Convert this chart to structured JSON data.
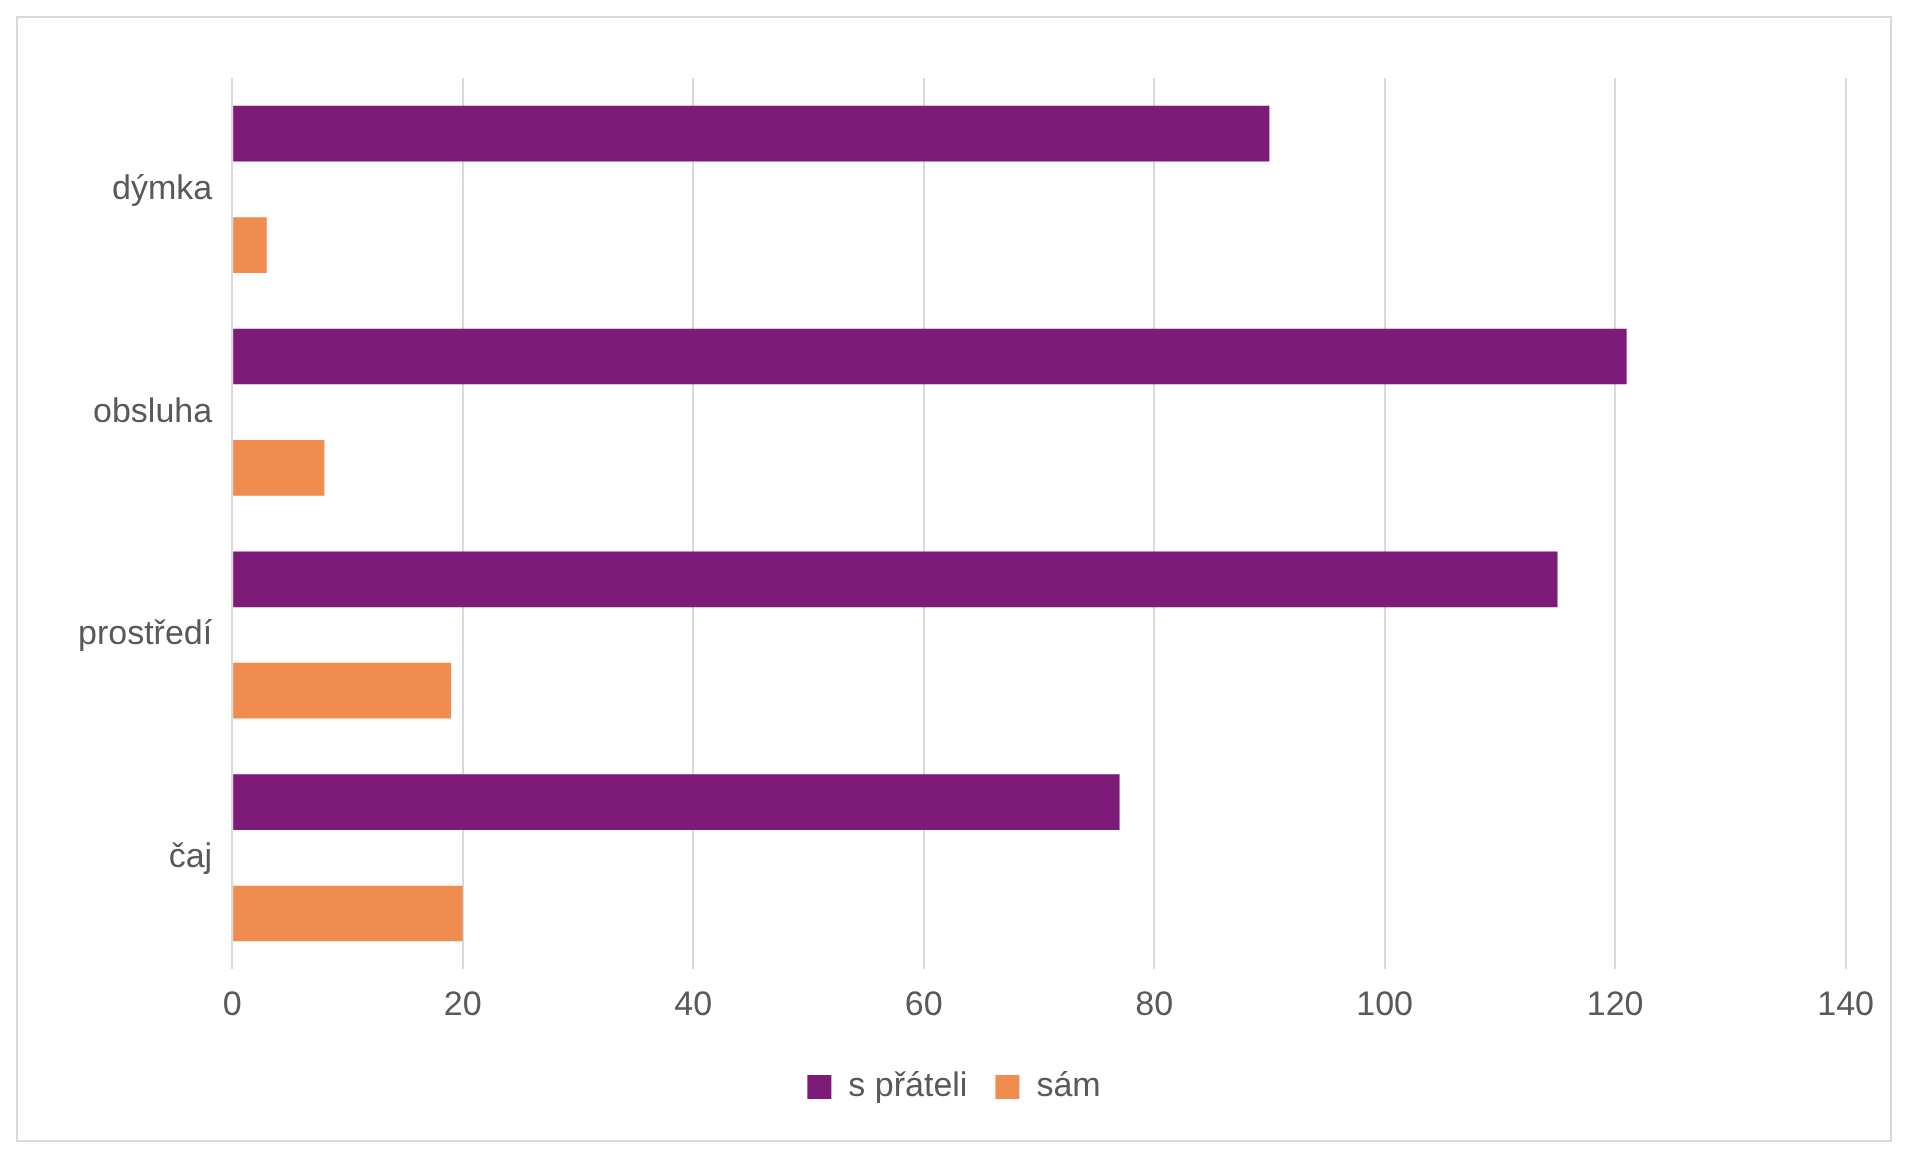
{
  "chart_data": {
    "type": "bar",
    "orientation": "horizontal",
    "categories": [
      "dýmka",
      "obsluha",
      "prostředí",
      "čaj"
    ],
    "series": [
      {
        "name": "s přáteli",
        "color": "#7e1a77",
        "values": [
          90,
          121,
          115,
          77
        ]
      },
      {
        "name": "sám",
        "color": "#f08c50",
        "values": [
          3,
          8,
          19,
          20
        ]
      }
    ],
    "xlim": [
      0,
      140
    ],
    "xticks": [
      0,
      20,
      40,
      60,
      80,
      100,
      120,
      140
    ],
    "grid": "x",
    "legend": "bottom"
  }
}
